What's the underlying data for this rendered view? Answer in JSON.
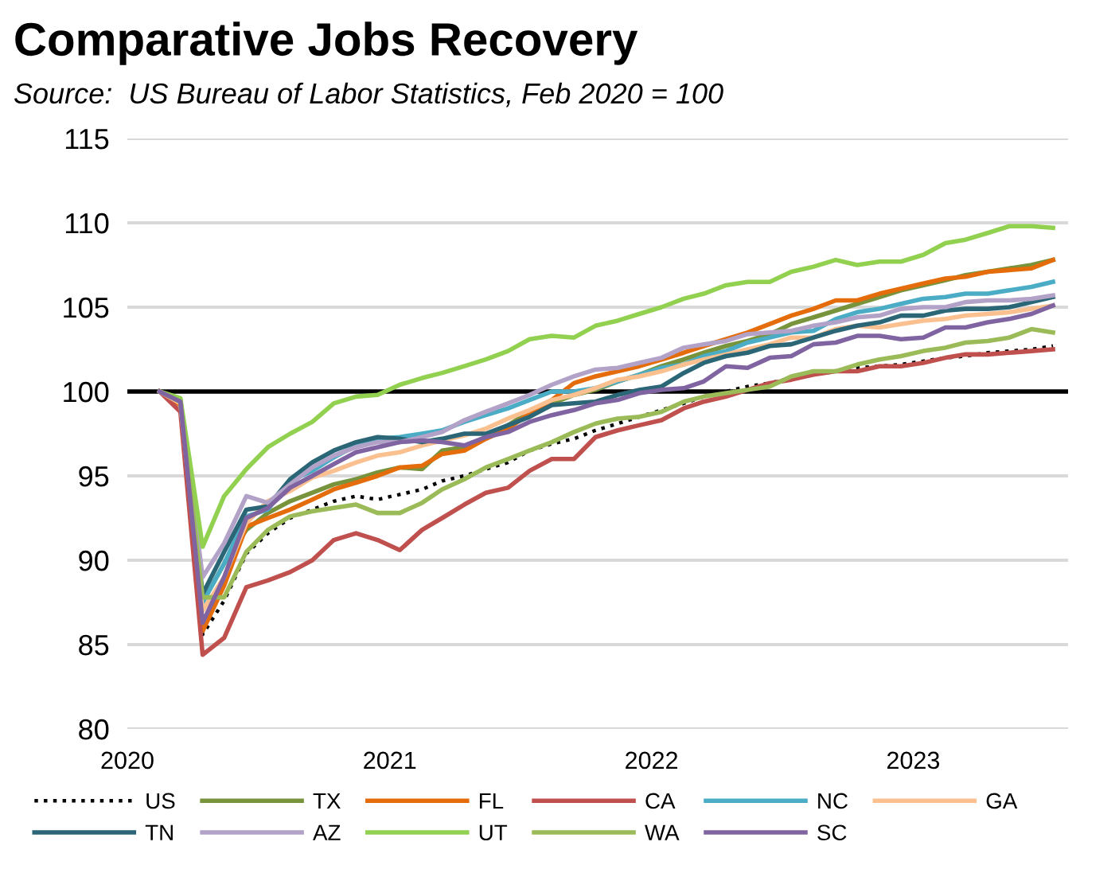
{
  "chart_data": {
    "type": "line",
    "title": "Comparative Jobs Recovery",
    "subtitle": "Source:  US Bureau of Labor Statistics, Feb 2020 = 100",
    "x": [
      "2020-02-15",
      "2020-03-15",
      "2020-04-15",
      "2020-05-15",
      "2020-06-15",
      "2020-07-15",
      "2020-08-15",
      "2020-09-15",
      "2020-10-15",
      "2020-11-15",
      "2020-12-15",
      "2021-01-15",
      "2021-02-15",
      "2021-03-15",
      "2021-04-15",
      "2021-05-15",
      "2021-06-15",
      "2021-07-15",
      "2021-08-15",
      "2021-09-15",
      "2021-10-15",
      "2021-11-15",
      "2021-12-15",
      "2022-01-15",
      "2022-02-15",
      "2022-03-15",
      "2022-04-15",
      "2022-05-15",
      "2022-06-15",
      "2022-07-15",
      "2022-08-15",
      "2022-09-15",
      "2022-10-15",
      "2022-11-15",
      "2022-12-15",
      "2023-01-15",
      "2023-02-15",
      "2023-03-15",
      "2023-04-15",
      "2023-05-15",
      "2023-06-15",
      "2023-07-15"
    ],
    "series": [
      {
        "name": "US",
        "color": "#000000",
        "line_style": "dotted",
        "values": [
          100,
          99.2,
          85.6,
          87.6,
          90.4,
          91.6,
          92.5,
          93.0,
          93.5,
          93.8,
          93.6,
          93.9,
          94.2,
          94.7,
          95.0,
          95.4,
          95.8,
          96.5,
          96.9,
          97.2,
          97.7,
          98.1,
          98.5,
          98.9,
          99.3,
          99.7,
          100.0,
          100.3,
          100.5,
          100.8,
          101.0,
          101.2,
          101.4,
          101.5,
          101.6,
          101.8,
          102.0,
          102.1,
          102.3,
          102.4,
          102.5,
          102.7
        ]
      },
      {
        "name": "TX",
        "color": "#77933c",
        "values": [
          100,
          99.4,
          87.5,
          89.8,
          91.8,
          92.8,
          93.5,
          94.0,
          94.5,
          94.8,
          95.2,
          95.5,
          95.4,
          96.5,
          96.7,
          97.3,
          98.0,
          98.8,
          99.3,
          99.8,
          100.1,
          100.6,
          101.0,
          101.5,
          101.9,
          102.3,
          102.7,
          103.0,
          103.4,
          104.0,
          104.4,
          104.8,
          105.2,
          105.6,
          106.0,
          106.3,
          106.6,
          106.9,
          107.1,
          107.3,
          107.5,
          107.8
        ]
      },
      {
        "name": "FL",
        "color": "#e46c0a",
        "values": [
          100,
          99.2,
          85.8,
          88.5,
          92.0,
          92.5,
          93.0,
          93.6,
          94.2,
          94.6,
          95.0,
          95.5,
          95.6,
          96.3,
          96.5,
          97.2,
          97.8,
          98.7,
          99.5,
          100.5,
          100.9,
          101.2,
          101.5,
          101.9,
          102.3,
          102.7,
          103.1,
          103.5,
          104.0,
          104.5,
          104.9,
          105.4,
          105.4,
          105.8,
          106.1,
          106.4,
          106.7,
          106.8,
          107.1,
          107.2,
          107.3,
          107.8
        ]
      },
      {
        "name": "CA",
        "color": "#c0504d",
        "values": [
          100,
          98.8,
          84.4,
          85.4,
          88.4,
          88.8,
          89.3,
          90.0,
          91.2,
          91.6,
          91.2,
          90.6,
          91.8,
          92.5,
          93.3,
          94.0,
          94.3,
          95.3,
          96.0,
          96.0,
          97.3,
          97.7,
          98.0,
          98.3,
          99.0,
          99.4,
          99.7,
          100.1,
          100.5,
          100.7,
          101.0,
          101.2,
          101.2,
          101.5,
          101.5,
          101.7,
          102.0,
          102.2,
          102.2,
          102.3,
          102.4,
          102.5
        ]
      },
      {
        "name": "NC",
        "color": "#4bacc6",
        "values": [
          100,
          99.4,
          87.5,
          89.8,
          92.6,
          93.0,
          94.7,
          95.3,
          96.1,
          96.8,
          97.2,
          97.3,
          97.5,
          97.7,
          98.2,
          98.6,
          99.0,
          99.5,
          100.0,
          100.0,
          100.2,
          100.6,
          101.0,
          101.4,
          101.6,
          102.1,
          102.4,
          102.9,
          103.2,
          103.5,
          103.6,
          104.3,
          104.7,
          104.9,
          105.2,
          105.5,
          105.6,
          105.8,
          105.8,
          106.0,
          106.2,
          106.5
        ]
      },
      {
        "name": "GA",
        "color": "#fac090",
        "values": [
          100,
          99.3,
          87.0,
          89.0,
          92.2,
          93.5,
          94.1,
          94.9,
          95.3,
          95.8,
          96.2,
          96.4,
          96.8,
          97.1,
          97.4,
          97.8,
          98.4,
          98.9,
          99.5,
          99.8,
          100.2,
          100.7,
          100.9,
          101.2,
          101.6,
          101.9,
          102.2,
          102.5,
          102.8,
          103.2,
          103.2,
          103.7,
          103.9,
          103.8,
          104.0,
          104.2,
          104.3,
          104.5,
          104.6,
          104.7,
          104.9,
          105.1
        ]
      },
      {
        "name": "TN",
        "color": "#2b6677",
        "values": [
          100,
          99.5,
          88.0,
          90.5,
          93.0,
          93.2,
          94.8,
          95.8,
          96.5,
          97.0,
          97.3,
          97.2,
          97.0,
          97.2,
          97.5,
          97.5,
          98.0,
          98.5,
          99.2,
          99.3,
          99.4,
          99.8,
          100.1,
          100.3,
          101.1,
          101.7,
          102.1,
          102.3,
          102.7,
          102.8,
          103.2,
          103.6,
          103.9,
          104.1,
          104.5,
          104.5,
          104.8,
          104.9,
          104.9,
          105.0,
          105.3,
          105.6
        ]
      },
      {
        "name": "AZ",
        "color": "#b3a2c7",
        "values": [
          100,
          99.4,
          89.0,
          91.0,
          93.8,
          93.4,
          94.5,
          95.5,
          96.2,
          96.7,
          97.0,
          97.0,
          97.3,
          97.6,
          98.3,
          98.8,
          99.3,
          99.8,
          100.4,
          100.9,
          101.3,
          101.4,
          101.7,
          102.0,
          102.6,
          102.8,
          103.0,
          103.4,
          103.5,
          103.6,
          103.9,
          104.1,
          104.4,
          104.5,
          104.9,
          105.0,
          105.0,
          105.3,
          105.4,
          105.4,
          105.5,
          105.7
        ]
      },
      {
        "name": "UT",
        "color": "#92d050",
        "values": [
          100,
          99.6,
          90.8,
          93.8,
          95.4,
          96.7,
          97.5,
          98.2,
          99.3,
          99.7,
          99.8,
          100.4,
          100.8,
          101.1,
          101.5,
          101.9,
          102.4,
          103.1,
          103.3,
          103.2,
          103.9,
          104.2,
          104.6,
          105.0,
          105.5,
          105.8,
          106.3,
          106.5,
          106.5,
          107.1,
          107.4,
          107.8,
          107.5,
          107.7,
          107.7,
          108.1,
          108.8,
          109.0,
          109.4,
          109.8,
          109.8,
          109.7
        ]
      },
      {
        "name": "WA",
        "color": "#9bbb59",
        "values": [
          100,
          99.4,
          87.8,
          87.8,
          90.5,
          91.8,
          92.6,
          92.9,
          93.1,
          93.3,
          92.8,
          92.8,
          93.4,
          94.2,
          94.8,
          95.5,
          96.0,
          96.5,
          97.0,
          97.6,
          98.1,
          98.4,
          98.5,
          98.8,
          99.4,
          99.7,
          99.9,
          100.1,
          100.3,
          100.9,
          101.2,
          101.2,
          101.6,
          101.9,
          102.1,
          102.4,
          102.6,
          102.9,
          103.0,
          103.2,
          103.7,
          103.5
        ]
      },
      {
        "name": "SC",
        "color": "#8064a2",
        "values": [
          100,
          99.4,
          86.3,
          89.0,
          92.5,
          93.1,
          94.3,
          95.0,
          95.7,
          96.4,
          96.7,
          97.0,
          97.1,
          97.0,
          96.8,
          97.3,
          97.6,
          98.2,
          98.6,
          98.9,
          99.3,
          99.5,
          99.9,
          100.1,
          100.2,
          100.6,
          101.5,
          101.4,
          102.0,
          102.1,
          102.8,
          102.9,
          103.3,
          103.3,
          103.1,
          103.2,
          103.8,
          103.8,
          104.1,
          104.3,
          104.6,
          105.1
        ]
      }
    ],
    "xlim": [
      "2020-01-01",
      "2023-08-05"
    ],
    "xticks": [
      {
        "value": "2020-01-01",
        "label": "2020"
      },
      {
        "value": "2021-01-01",
        "label": "2021"
      },
      {
        "value": "2022-01-01",
        "label": "2022"
      },
      {
        "value": "2023-01-01",
        "label": "2023"
      }
    ],
    "ylim": [
      80,
      115
    ],
    "yticks": [
      80,
      85,
      90,
      95,
      100,
      105,
      110,
      115
    ],
    "ref_lines": [
      {
        "axis": "y",
        "value": 100,
        "color": "#000000"
      }
    ],
    "grid": "y",
    "legend": "bottom",
    "marker": "none",
    "line_style": "solid"
  }
}
